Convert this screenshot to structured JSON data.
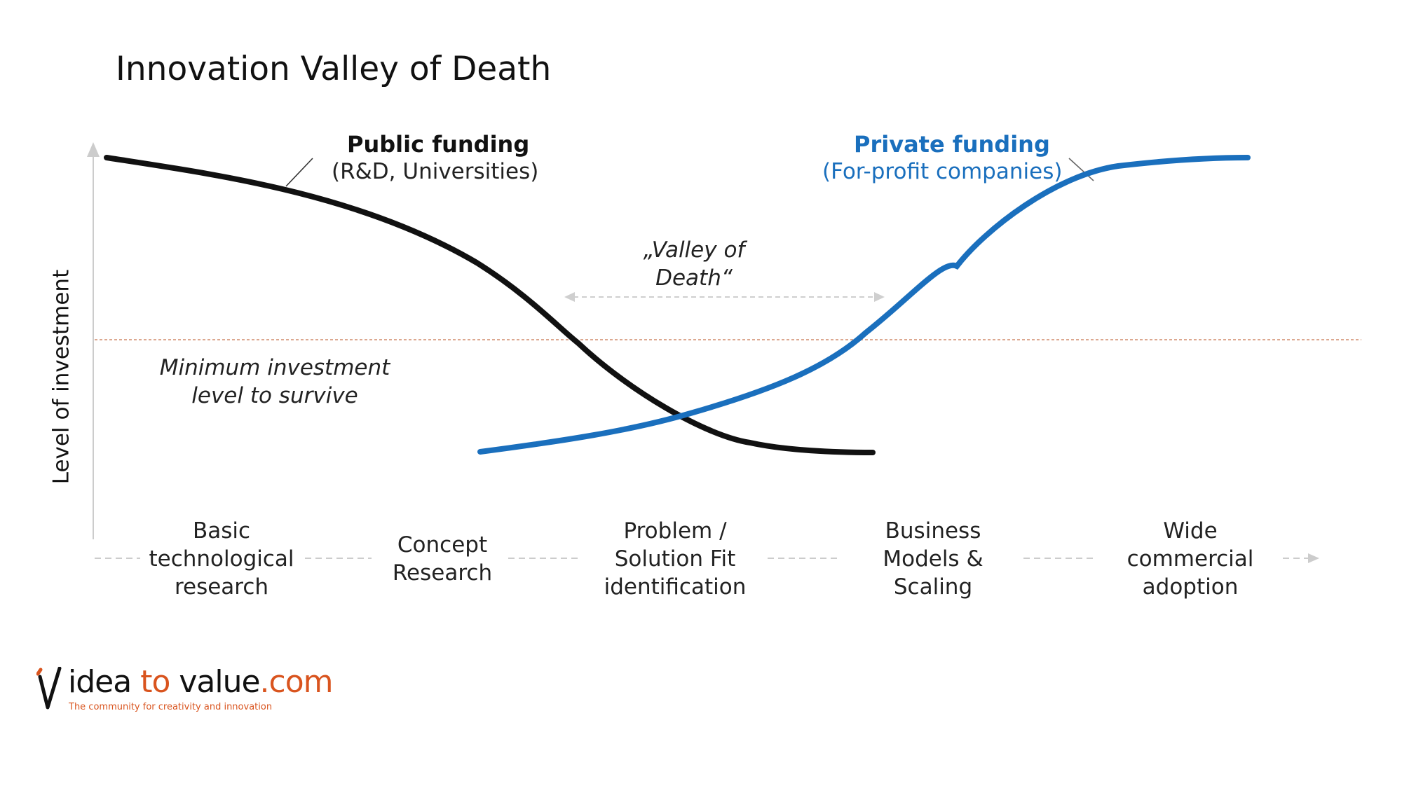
{
  "title": "Innovation Valley of Death",
  "y_axis_label": "Level of  investment",
  "public_funding": {
    "title": "Public funding",
    "subtitle": "(R&D, Universities)"
  },
  "private_funding": {
    "title": "Private funding",
    "subtitle": "(For-profit companies)"
  },
  "valley_label": [
    "„Valley of",
    "Death“"
  ],
  "minimum_level_label": [
    "Minimum investment",
    "level to survive"
  ],
  "stages": [
    {
      "lines": [
        "Basic",
        "technological",
        "research"
      ]
    },
    {
      "lines": [
        "Concept",
        "Research"
      ]
    },
    {
      "lines": [
        "Problem /",
        "Solution Fit",
        "identification"
      ]
    },
    {
      "lines": [
        "Business",
        "Models &",
        "Scaling"
      ]
    },
    {
      "lines": [
        "Wide",
        "commercial",
        "adoption"
      ]
    }
  ],
  "logo": {
    "parts": [
      {
        "text": "idea ",
        "color": "#111111"
      },
      {
        "text": "to ",
        "color": "#d9541e"
      },
      {
        "text": "value",
        "color": "#111111"
      },
      {
        "text": ".com",
        "color": "#d9541e"
      }
    ],
    "tagline": "The community for creativity and innovation"
  },
  "colors": {
    "public_curve": "#111111",
    "private_curve": "#1a6fbd",
    "threshold_line": "#d08b6c",
    "axis": "#cccccc",
    "accent": "#d9541e"
  }
}
